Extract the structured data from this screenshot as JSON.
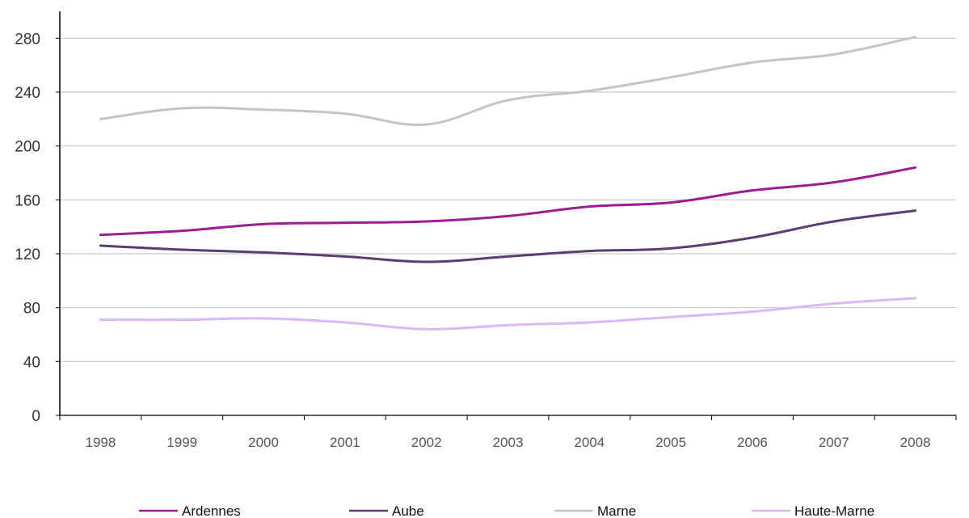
{
  "chart_data": {
    "type": "line",
    "title": "",
    "xlabel": "",
    "ylabel": "",
    "x": [
      "1998",
      "1999",
      "2000",
      "2001",
      "2002",
      "2003",
      "2004",
      "2005",
      "2006",
      "2007",
      "2008"
    ],
    "ylim": [
      0,
      300
    ],
    "yticks": [
      "0",
      "40",
      "80",
      "120",
      "160",
      "200",
      "240",
      "280"
    ],
    "grid": "horizontal",
    "legend_position": "bottom",
    "series": [
      {
        "name": "Ardennes",
        "color": "#9b1d8f",
        "values": [
          134,
          137,
          142,
          143,
          144,
          148,
          155,
          158,
          167,
          173,
          184
        ]
      },
      {
        "name": "Aube",
        "color": "#5b3d73",
        "values": [
          126,
          123,
          121,
          118,
          114,
          118,
          122,
          124,
          132,
          144,
          152
        ]
      },
      {
        "name": "Marne",
        "color": "#c4c4c4",
        "values": [
          220,
          228,
          227,
          224,
          216,
          234,
          241,
          251,
          262,
          268,
          281
        ]
      },
      {
        "name": "Haute-Marne",
        "color": "#d9b8f5",
        "values": [
          71,
          71,
          72,
          69,
          64,
          67,
          69,
          73,
          77,
          83,
          87
        ]
      }
    ]
  }
}
